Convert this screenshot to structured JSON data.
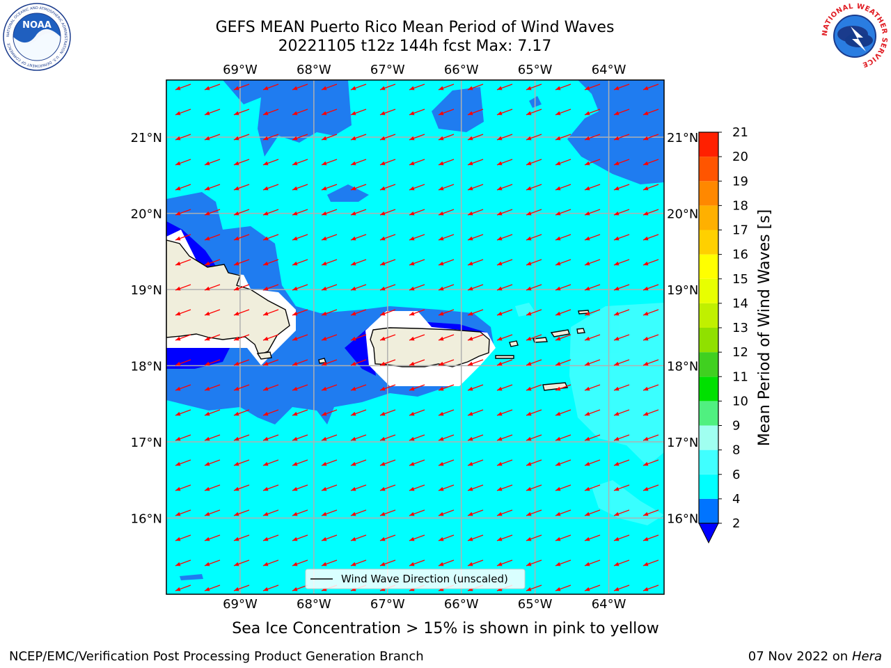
{
  "header": {
    "title_line1": "GEFS MEAN Puerto Rico Mean Period of Wind Waves",
    "title_line2": "20221105 t12z 144h fcst   Max: 7.17"
  },
  "logos": {
    "left_icon": "noaa-logo-icon",
    "left_text": "NOAA",
    "left_ring_text": "NATIONAL OCEANIC AND ATMOSPHERIC ADMINISTRATION · U.S. DEPARTMENT OF COMMERCE",
    "right_icon": "nws-logo-icon",
    "right_ring_text": "NATIONAL WEATHER SERVICE"
  },
  "map": {
    "lon_labels": [
      "69°W",
      "68°W",
      "67°W",
      "66°W",
      "65°W",
      "64°W"
    ],
    "lat_labels": [
      "21°N",
      "20°N",
      "19°N",
      "18°N",
      "17°N",
      "16°N"
    ],
    "extent": {
      "lon_min": -70.0,
      "lon_max": -63.25,
      "lat_min": 15.0,
      "lat_max": 21.75
    },
    "legend_label": "Wind Wave Direction (unscaled)",
    "ocean_color": "#00ffff",
    "land_color": "#f0eedc",
    "arrow_color": "#ff0000"
  },
  "colorbar": {
    "label": "Mean Period of Wind Waves [s]",
    "ticks": [
      "2",
      "4",
      "6",
      "8",
      "9",
      "10",
      "11",
      "12",
      "13",
      "14",
      "15",
      "16",
      "17",
      "18",
      "19",
      "20",
      "21"
    ],
    "colors": [
      "#0074ff",
      "#00ffff",
      "#40ffff",
      "#a0fff0",
      "#50f080",
      "#00e000",
      "#40d020",
      "#90e000",
      "#c0f000",
      "#e8ff00",
      "#ffff00",
      "#ffd000",
      "#ffb000",
      "#ff8800",
      "#ff5500",
      "#ff2000"
    ],
    "under_color": "#0000ff"
  },
  "footer": {
    "subtitle": "Sea Ice Concentration > 15% is shown in pink to yellow",
    "left": "NCEP/EMC/Verification Post Processing Product Generation Branch",
    "right_date": "07 Nov 2022 on",
    "right_host": "Hera"
  }
}
